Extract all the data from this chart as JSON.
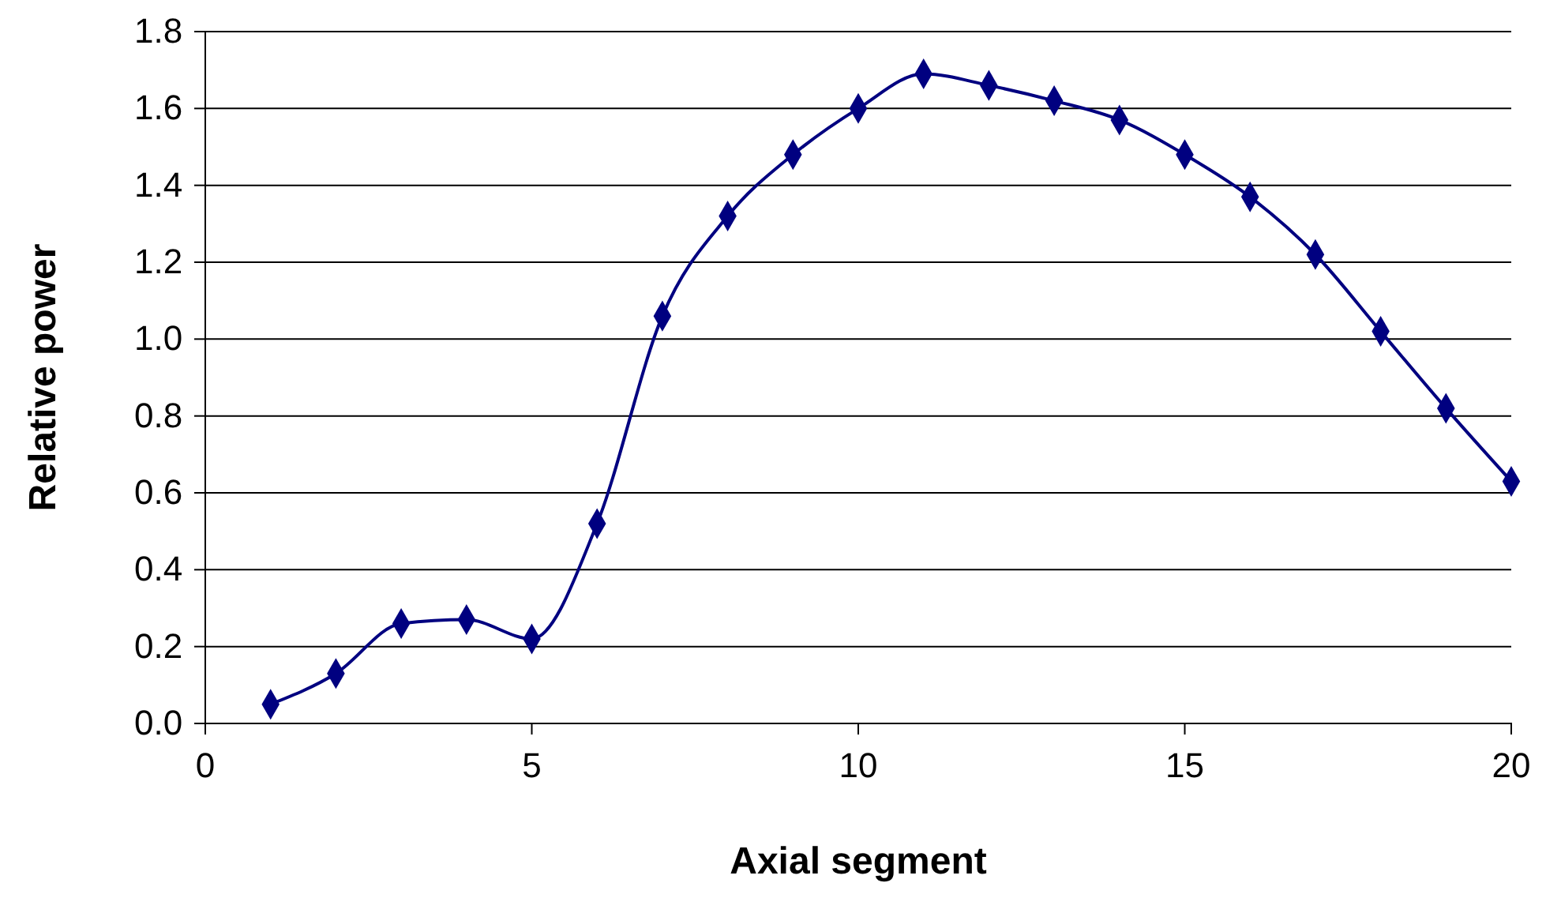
{
  "chart_data": {
    "type": "line",
    "xlabel": "Axial segment",
    "ylabel": "Relative power",
    "x": [
      1,
      2,
      3,
      4,
      5,
      6,
      7,
      8,
      9,
      10,
      11,
      12,
      13,
      14,
      15,
      16,
      17,
      18,
      19,
      20
    ],
    "series": [
      {
        "color": "#000080",
        "values": [
          0.05,
          0.13,
          0.26,
          0.27,
          0.22,
          0.52,
          1.06,
          1.32,
          1.48,
          1.6,
          1.69,
          1.66,
          1.62,
          1.57,
          1.48,
          1.37,
          1.22,
          1.02,
          0.82,
          0.63
        ]
      }
    ],
    "xlim": [
      0,
      20
    ],
    "xticks": [
      0,
      5,
      10,
      15,
      20
    ],
    "ylim": [
      0,
      1.8
    ],
    "yticks": [
      {
        "value": 0,
        "label": "0.0"
      },
      {
        "value": 0.2,
        "label": "0.2"
      },
      {
        "value": 0.4,
        "label": "0.4"
      },
      {
        "value": 0.6,
        "label": "0.6"
      },
      {
        "value": 0.8,
        "label": "0.8"
      },
      {
        "value": 1,
        "label": "1.0"
      },
      {
        "value": 1.2,
        "label": "1.2"
      },
      {
        "value": 1.4,
        "label": "1.4"
      },
      {
        "value": 1.6,
        "label": "1.6"
      },
      {
        "value": 1.8,
        "label": "1.8"
      }
    ],
    "grid": "y",
    "marker": "diamond",
    "line_style": "solid"
  }
}
